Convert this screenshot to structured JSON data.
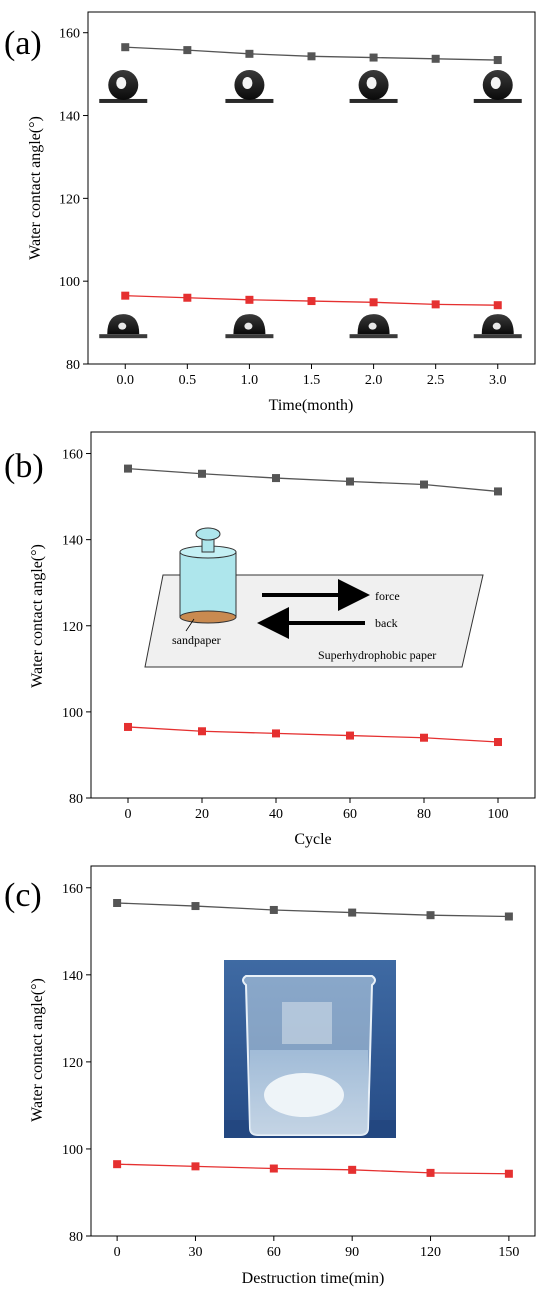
{
  "colors": {
    "series_top": "#555555",
    "series_bottom": "#e53030",
    "marker_top": "#555555",
    "marker_bottom": "#e53030"
  },
  "chart_data": [
    {
      "type": "line",
      "panel_label": "(a)",
      "xlabel": "Time(month)",
      "ylabel": "Water contact angle(°)",
      "xlim": [
        -0.3,
        3.3
      ],
      "ylim": [
        80,
        165
      ],
      "xticks": [
        0.0,
        0.5,
        1.0,
        1.5,
        2.0,
        2.5,
        3.0
      ],
      "xtick_labels": [
        "0.0",
        "0.5",
        "1.0",
        "1.5",
        "2.0",
        "2.5",
        "3.0"
      ],
      "yticks": [
        80,
        100,
        120,
        140,
        160
      ],
      "ytick_labels": [
        "80",
        "100",
        "120",
        "140",
        "160"
      ],
      "x": [
        0.0,
        0.5,
        1.0,
        1.5,
        2.0,
        2.5,
        3.0
      ],
      "series": [
        {
          "values": [
            156.5,
            155.8,
            154.9,
            154.3,
            154.0,
            153.7,
            153.4
          ],
          "color": "#555555",
          "marker": "square"
        },
        {
          "values": [
            96.5,
            96.0,
            95.5,
            95.2,
            94.9,
            94.4,
            94.2
          ],
          "color": "#e53030",
          "marker": "square"
        }
      ],
      "inset": "droplet-photos",
      "grid": false
    },
    {
      "type": "line",
      "panel_label": "(b)",
      "xlabel": "Cycle",
      "ylabel": "Water contact angle(°)",
      "xlim": [
        -10,
        110
      ],
      "ylim": [
        80,
        165
      ],
      "xticks": [
        0,
        20,
        40,
        60,
        80,
        100
      ],
      "xtick_labels": [
        "0",
        "20",
        "40",
        "60",
        "80",
        "100"
      ],
      "yticks": [
        80,
        100,
        120,
        140,
        160
      ],
      "ytick_labels": [
        "80",
        "100",
        "120",
        "140",
        "160"
      ],
      "x": [
        0,
        20,
        40,
        60,
        80,
        100
      ],
      "series": [
        {
          "values": [
            156.5,
            155.3,
            154.3,
            153.5,
            152.8,
            151.2
          ],
          "color": "#555555",
          "marker": "square"
        },
        {
          "values": [
            96.5,
            95.5,
            95.0,
            94.5,
            94.0,
            93.0
          ],
          "color": "#e53030",
          "marker": "square"
        }
      ],
      "inset": "abrasion-diagram",
      "inset_labels": {
        "force": "force",
        "back": "back",
        "sandpaper": "sandpaper",
        "paper": "Superhydrophobic paper"
      },
      "grid": false
    },
    {
      "type": "line",
      "panel_label": "(c)",
      "xlabel": "Destruction time(min)",
      "ylabel": "Water contact angle(°)",
      "xlim": [
        -10,
        160
      ],
      "ylim": [
        80,
        165
      ],
      "xticks": [
        0,
        30,
        60,
        90,
        120,
        150
      ],
      "xtick_labels": [
        "0",
        "30",
        "60",
        "90",
        "120",
        "150"
      ],
      "yticks": [
        80,
        100,
        120,
        140,
        160
      ],
      "ytick_labels": [
        "80",
        "100",
        "120",
        "140",
        "160"
      ],
      "x": [
        0,
        30,
        60,
        90,
        120,
        150
      ],
      "series": [
        {
          "values": [
            156.5,
            155.8,
            154.9,
            154.3,
            153.7,
            153.4
          ],
          "color": "#555555",
          "marker": "square"
        },
        {
          "values": [
            96.5,
            96.0,
            95.5,
            95.2,
            94.5,
            94.3
          ],
          "color": "#e53030",
          "marker": "square"
        }
      ],
      "inset": "beaker-photo",
      "grid": false
    }
  ]
}
